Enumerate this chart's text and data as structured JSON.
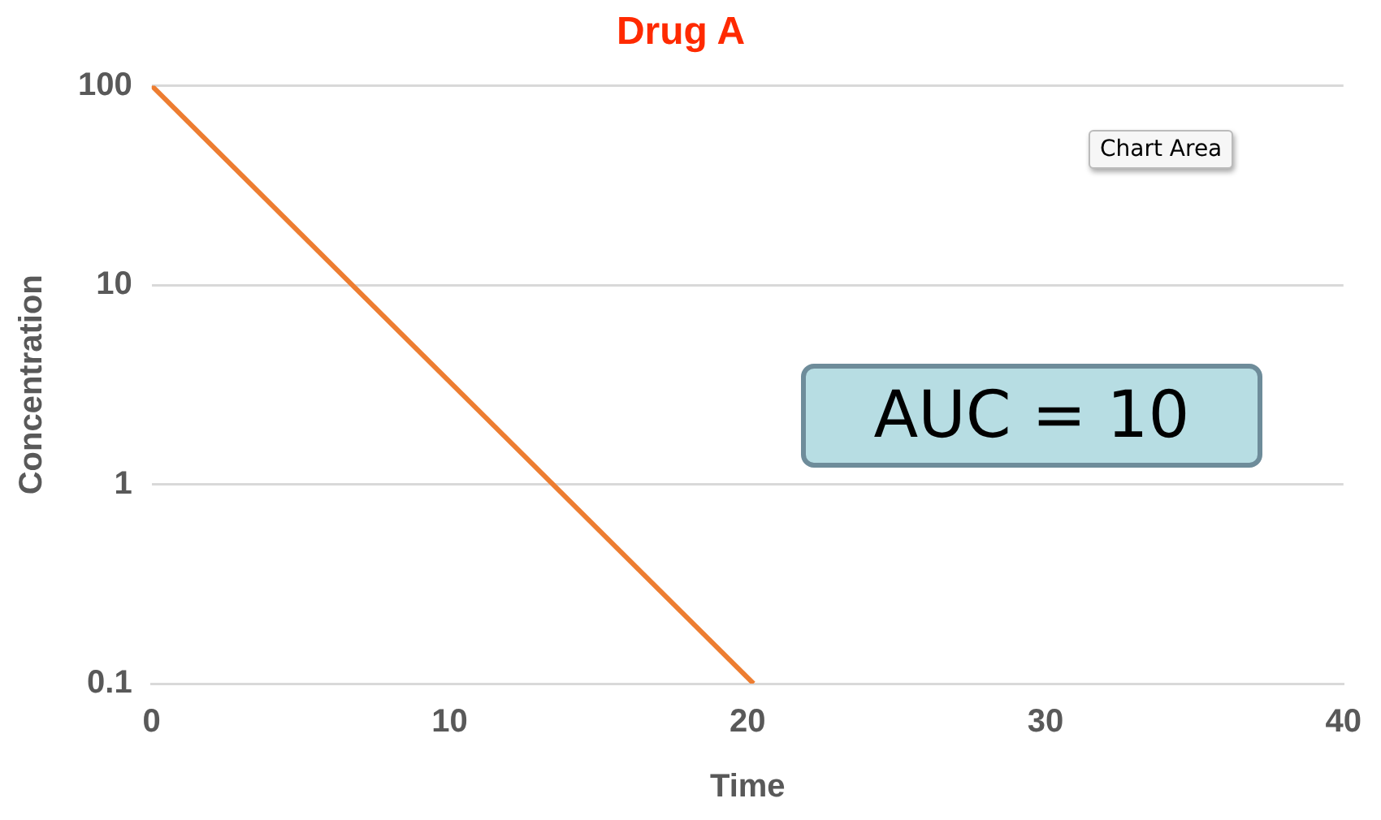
{
  "chart_data": {
    "type": "line",
    "title": "Drug A",
    "xlabel": "Time",
    "ylabel": "Concentration",
    "x": [
      0,
      20.2
    ],
    "series": [
      {
        "color": "#ed7d31",
        "values": [
          100,
          0.1
        ]
      }
    ],
    "xlim": [
      0,
      40
    ],
    "xticks": [
      0,
      10,
      20,
      30,
      40
    ],
    "ylim": [
      0.1,
      100
    ],
    "yticks": [
      0.1,
      1,
      10,
      100
    ],
    "log": "y",
    "grid": "y",
    "legend": false,
    "marker": "none",
    "line_style": "solid",
    "annotations": [
      "Chart Area",
      "AUC = 10"
    ]
  }
}
